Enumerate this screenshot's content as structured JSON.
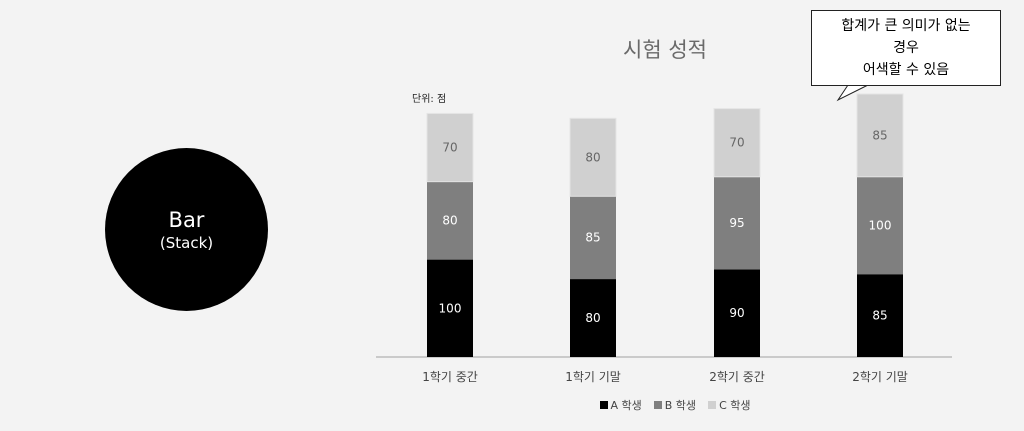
{
  "badge": {
    "line1": "Bar",
    "line2": "(Stack)"
  },
  "callout": {
    "lines": [
      "합계가 큰 의미가 없는",
      "경우",
      "어색할 수 있음"
    ]
  },
  "chart_data": {
    "type": "bar",
    "stacked": true,
    "title": "시험 성적",
    "unit_label": "단위: 점",
    "categories": [
      "1학기 중간",
      "1학기 기말",
      "2학기 중간",
      "2학기 기말"
    ],
    "series": [
      {
        "name": "A 학생",
        "values": [
          100,
          80,
          90,
          85
        ],
        "color": "#000000",
        "label_color": "#ffffff"
      },
      {
        "name": "B 학생",
        "values": [
          80,
          85,
          95,
          100
        ],
        "color": "#7f7f7f",
        "label_color": "#ffffff"
      },
      {
        "name": "C 학생",
        "values": [
          70,
          80,
          70,
          85
        ],
        "color": "#d0d0d0",
        "label_color": "#666666"
      }
    ],
    "ylim": [
      0,
      270
    ],
    "grid": false,
    "legend_position": "bottom"
  }
}
